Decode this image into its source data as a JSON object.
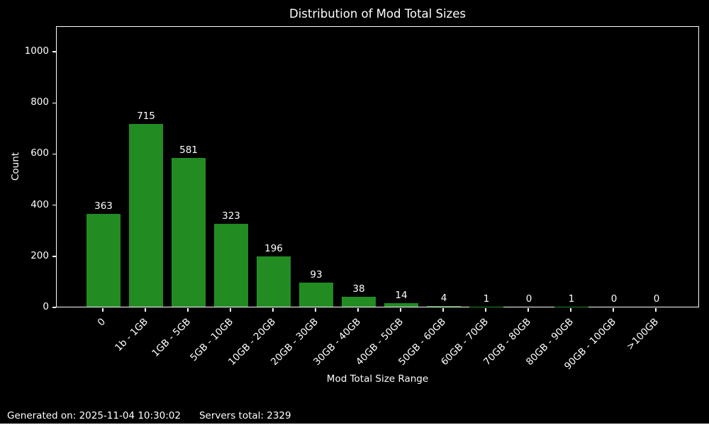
{
  "title": "Distribution of Mod Total Sizes",
  "footer": {
    "generated_on": "Generated on: 2025-11-04 10:30:02",
    "servers_total": "Servers total: 2329"
  },
  "chart_data": {
    "type": "bar",
    "title": "Distribution of Mod Total Sizes",
    "categories": [
      "0",
      "1b - 1GB",
      "1GB - 5GB",
      "5GB - 10GB",
      "10GB - 20GB",
      "20GB - 30GB",
      "30GB - 40GB",
      "40GB - 50GB",
      "50GB - 60GB",
      "60GB - 70GB",
      "70GB - 80GB",
      "80GB - 90GB",
      "90GB - 100GB",
      ">100GB"
    ],
    "values": [
      363,
      715,
      581,
      323,
      196,
      93,
      38,
      14,
      4,
      1,
      0,
      1,
      0,
      0
    ],
    "bar_labels": [
      363,
      715,
      581,
      323,
      196,
      93,
      38,
      14,
      4,
      1,
      0,
      1,
      0,
      0
    ],
    "xlabel": "Mod Total Size Range",
    "ylabel": "Count",
    "yticks": [
      0,
      200,
      400,
      600,
      800,
      1000
    ],
    "ylim": [
      0,
      1100
    ],
    "grid": false,
    "legend_position": "none",
    "colors": {
      "bar": "#228B22",
      "background": "#000000",
      "text": "#ffffff",
      "spine": "#ffffff"
    }
  }
}
